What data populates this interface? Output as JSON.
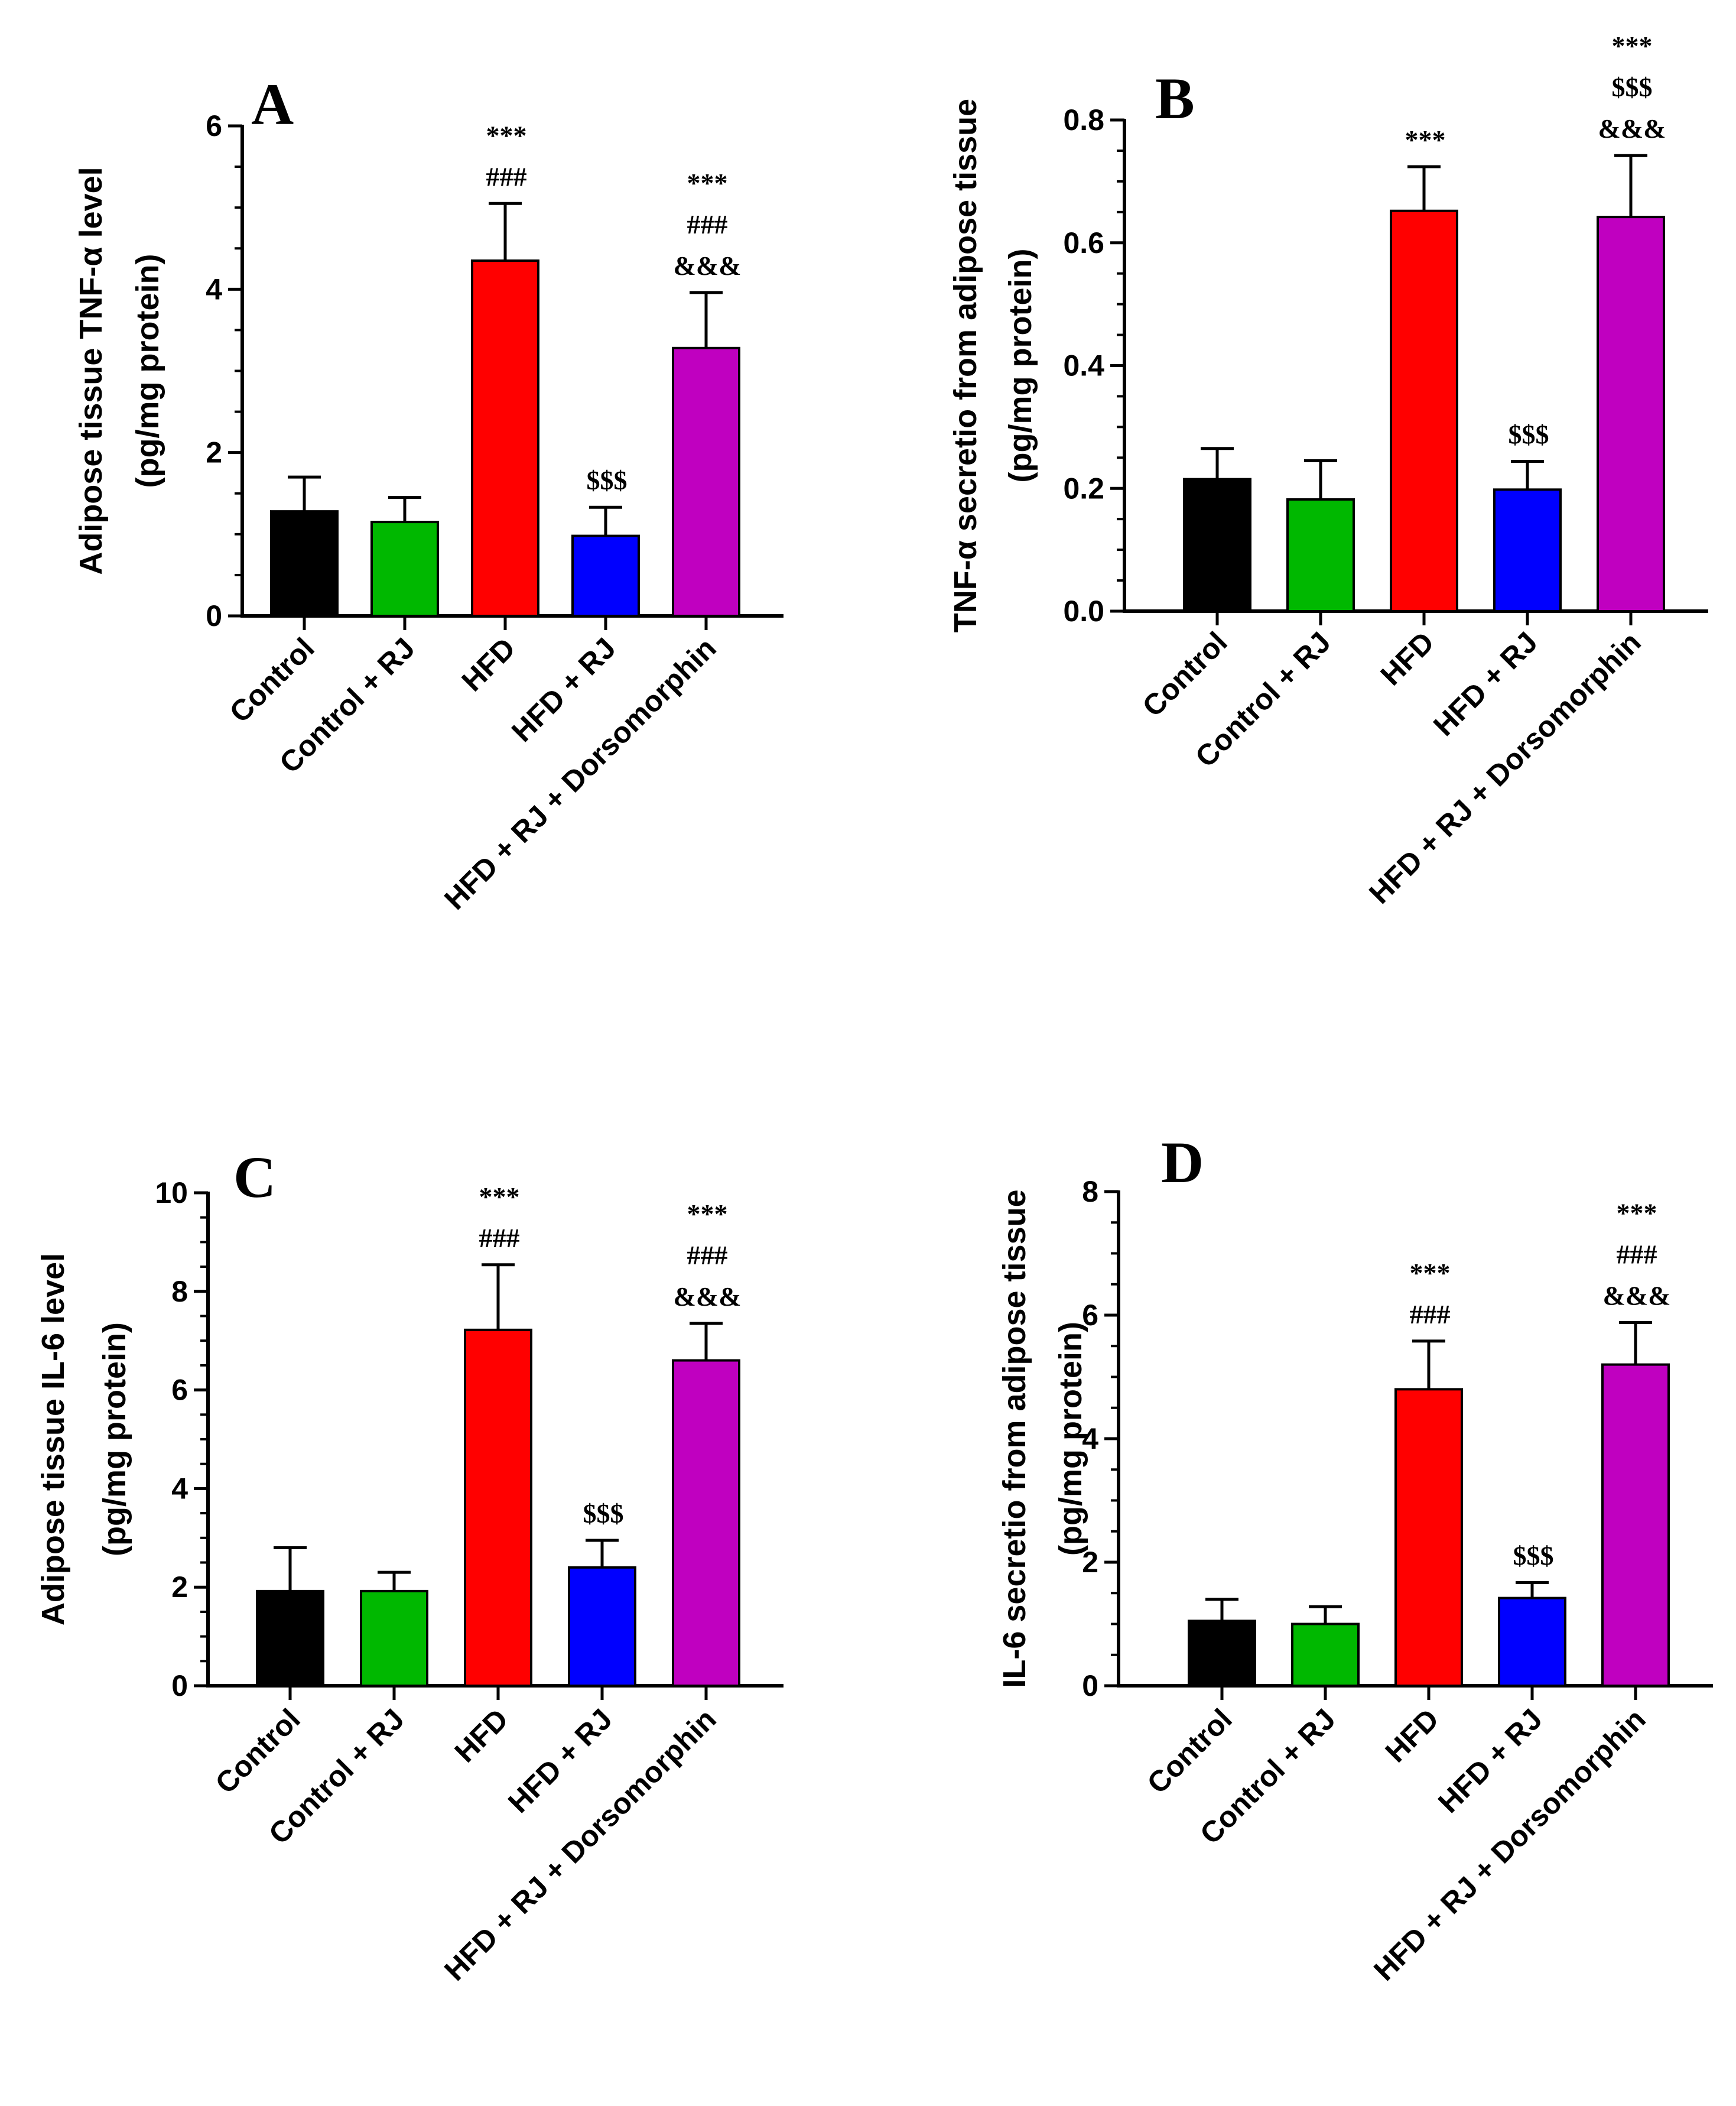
{
  "chart_data": [
    {
      "type": "bar",
      "panel": "A",
      "ylabel_line1": "Adipose tissue TNF-α level",
      "ylabel_line2": "(pg/mg protein)",
      "categories": [
        "Control",
        "Control + RJ",
        "HFD",
        "HFD + RJ",
        "HFD + RJ + Dorsomorphin"
      ],
      "values": [
        1.28,
        1.15,
        4.35,
        0.98,
        3.28
      ],
      "errors": [
        0.42,
        0.3,
        0.7,
        0.35,
        0.68
      ],
      "colors": [
        "#000000",
        "#00b800",
        "#ff0000",
        "#0000ff",
        "#c000c0"
      ],
      "ylim": [
        0,
        6
      ],
      "ticks": [
        "0",
        "2",
        "4",
        "6"
      ],
      "significance": [
        [],
        [],
        [
          "***",
          "###"
        ],
        [
          "$$$"
        ],
        [
          "***",
          "###",
          "&&&"
        ]
      ]
    },
    {
      "type": "bar",
      "panel": "B",
      "ylabel_line1": "TNF-α secretio from adipose tissue",
      "ylabel_line2": "(pg/mg protein)",
      "categories": [
        "Control",
        "Control + RJ",
        "HFD",
        "HFD + RJ",
        "HFD + RJ + Dorsomorphin"
      ],
      "values": [
        0.215,
        0.182,
        0.652,
        0.198,
        0.642
      ],
      "errors": [
        0.05,
        0.063,
        0.072,
        0.046,
        0.1
      ],
      "colors": [
        "#000000",
        "#00b800",
        "#ff0000",
        "#0000ff",
        "#c000c0"
      ],
      "ylim": [
        0,
        0.8
      ],
      "ticks": [
        "0.0",
        "0.2",
        "0.4",
        "0.6",
        "0.8"
      ],
      "significance": [
        [],
        [],
        [
          "***"
        ],
        [
          "$$$"
        ],
        [
          "***",
          "$$$",
          "&&&"
        ]
      ]
    },
    {
      "type": "bar",
      "panel": "C",
      "ylabel_line1": "Adipose tissue IL-6 level",
      "ylabel_line2": "(pg/mg protein)",
      "categories": [
        "Control",
        "Control + RJ",
        "HFD",
        "HFD + RJ",
        "HFD + RJ + Dorsomorphin"
      ],
      "values": [
        1.92,
        1.92,
        7.22,
        2.4,
        6.6
      ],
      "errors": [
        0.88,
        0.38,
        1.32,
        0.55,
        0.75
      ],
      "colors": [
        "#000000",
        "#00b800",
        "#ff0000",
        "#0000ff",
        "#c000c0"
      ],
      "ylim": [
        0,
        10
      ],
      "ticks": [
        "0",
        "2",
        "4",
        "6",
        "8",
        "10"
      ],
      "significance": [
        [],
        [],
        [
          "***",
          "###"
        ],
        [
          "$$$"
        ],
        [
          "***",
          "###",
          "&&&"
        ]
      ]
    },
    {
      "type": "bar",
      "panel": "D",
      "ylabel_line1": "IL-6 secretio from adipose tissue",
      "ylabel_line2": "(pg/mg protein)",
      "categories": [
        "Control",
        "Control + RJ",
        "HFD",
        "HFD + RJ",
        "HFD + RJ + Dorsomorphin"
      ],
      "values": [
        1.05,
        1.0,
        4.8,
        1.42,
        5.2
      ],
      "errors": [
        0.35,
        0.28,
        0.78,
        0.25,
        0.68
      ],
      "colors": [
        "#000000",
        "#00b800",
        "#ff0000",
        "#0000ff",
        "#c000c0"
      ],
      "ylim": [
        0,
        8
      ],
      "ticks": [
        "0",
        "2",
        "4",
        "6",
        "8"
      ],
      "significance": [
        [],
        [],
        [
          "***",
          "###"
        ],
        [
          "$$$"
        ],
        [
          "***",
          "###",
          "&&&"
        ]
      ]
    }
  ]
}
